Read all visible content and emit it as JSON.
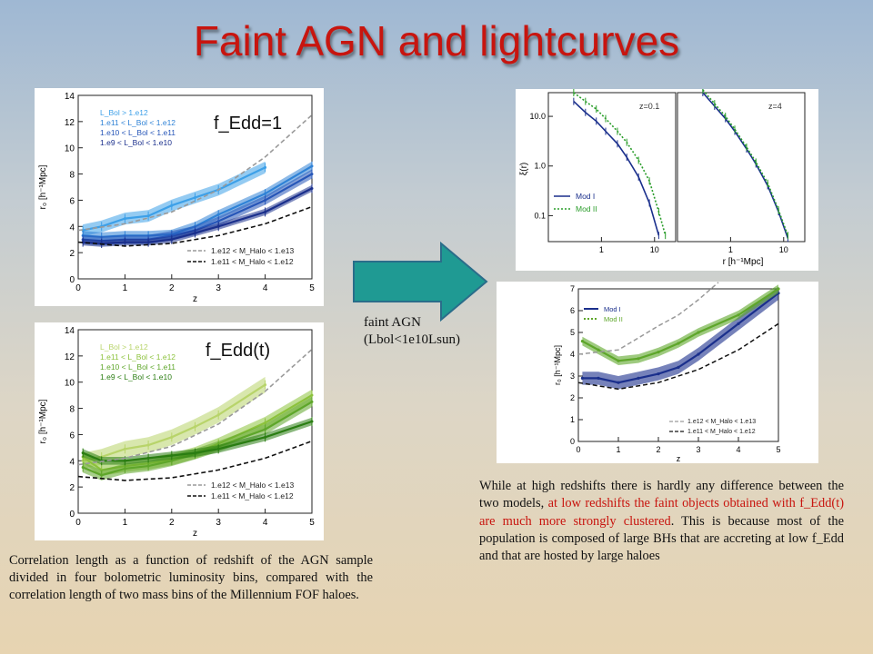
{
  "slide": {
    "title": "Faint AGN and lightcurves",
    "arrow_caption_line1": "faint AGN",
    "arrow_caption_line2": "(Lbol<1e10Lsun)",
    "caption_left": "Correlation length as a function of redshift of the AGN sample divided in four bolometric luminosity bins, compared with the correlation length of two mass bins of the Millennium FOF haloes.",
    "caption_right_part1": "While at high redshifts there is hardly any difference between the two models, ",
    "caption_right_red": "at low redshifts the faint objects obtained with f_Edd(t) are much more strongly clustered",
    "caption_right_part2": ". This is because most of the population is composed of large BHs that are accreting at low f_Edd and that are hosted by large haloes"
  },
  "colors": {
    "title": "#c8150f",
    "arrow": "#1f9a93",
    "blue_dark": "#1a2f8c",
    "green_dark": "#2a7d12"
  },
  "chart_data": [
    {
      "type": "line",
      "panel_label": "f_Edd=1",
      "xlabel": "z",
      "ylabel": "r₀ [h⁻¹Mpc]",
      "xlim": [
        0,
        5
      ],
      "ylim": [
        0,
        14
      ],
      "x_ticks": [
        "0",
        "1",
        "2",
        "3",
        "4",
        "5"
      ],
      "y_ticks": [
        "0",
        "2",
        "4",
        "6",
        "8",
        "10",
        "12",
        "14"
      ],
      "legend_lum": [
        {
          "name": "L_Bol > 1.e12",
          "color": "#3da0e8"
        },
        {
          "name": "1.e11 < L_Bol < 1.e12",
          "color": "#2f82d6"
        },
        {
          "name": "1.e10 < L_Bol < 1.e11",
          "color": "#2656b8"
        },
        {
          "name": "1.e9  < L_Bol < 1.e10",
          "color": "#1a2f8c"
        }
      ],
      "legend_halo": [
        {
          "name": "1.e12 < M_Halo < 1.e13",
          "style": "dashed",
          "color": "#9a9a9a"
        },
        {
          "name": "1.e11 < M_Halo < 1.e12",
          "style": "dashed",
          "color": "#111111"
        }
      ],
      "series": [
        {
          "name": "L_Bol > 1.e12",
          "color": "#3da0e8",
          "band": 0.45,
          "x": [
            0.1,
            0.5,
            1.0,
            1.5,
            2.0,
            2.5,
            3.0,
            4.0
          ],
          "y": [
            3.7,
            4.0,
            4.6,
            4.8,
            5.6,
            6.2,
            6.8,
            8.5
          ]
        },
        {
          "name": "1.e11 < L_Bol < 1.e12",
          "color": "#2f82d6",
          "band": 0.35,
          "x": [
            0.1,
            0.5,
            1.0,
            1.5,
            2.0,
            2.5,
            3.0,
            4.0,
            5.0
          ],
          "y": [
            3.3,
            3.2,
            3.3,
            3.3,
            3.4,
            4.0,
            4.9,
            6.5,
            8.6
          ]
        },
        {
          "name": "1.e10 < L_Bol < 1.e11",
          "color": "#2656b8",
          "band": 0.35,
          "x": [
            0.1,
            0.5,
            1.0,
            1.5,
            2.0,
            2.5,
            3.0,
            4.0,
            5.0
          ],
          "y": [
            3.0,
            2.9,
            3.0,
            3.0,
            3.3,
            3.7,
            4.4,
            6.0,
            8.0
          ]
        },
        {
          "name": "1.e9  < L_Bol < 1.e10",
          "color": "#1a2f8c",
          "band": 0.25,
          "x": [
            0.1,
            0.5,
            1.0,
            1.5,
            2.0,
            2.5,
            3.0,
            4.0,
            5.0
          ],
          "y": [
            2.8,
            2.7,
            2.8,
            2.8,
            3.0,
            3.5,
            4.0,
            5.1,
            6.9
          ]
        },
        {
          "name": "1.e12 < M_Halo < 1.e13",
          "color": "#9a9a9a",
          "dashed": true,
          "x": [
            0,
            1,
            2,
            3,
            4,
            5
          ],
          "y": [
            3.7,
            4.2,
            5.1,
            6.8,
            9.3,
            12.5
          ]
        },
        {
          "name": "1.e11 < M_Halo < 1.e12",
          "color": "#111111",
          "dashed": true,
          "x": [
            0,
            1,
            2,
            3,
            4,
            5
          ],
          "y": [
            2.8,
            2.5,
            2.7,
            3.3,
            4.2,
            5.5
          ]
        }
      ]
    },
    {
      "type": "line",
      "panel_label": "f_Edd(t)",
      "xlabel": "z",
      "ylabel": "r₀ [h⁻¹Mpc]",
      "xlim": [
        0,
        5
      ],
      "ylim": [
        0,
        14
      ],
      "x_ticks": [
        "0",
        "1",
        "2",
        "3",
        "4",
        "5"
      ],
      "y_ticks": [
        "0",
        "2",
        "4",
        "6",
        "8",
        "10",
        "12",
        "14"
      ],
      "legend_lum": [
        {
          "name": "L_Bol > 1.e12",
          "color": "#b8d46a"
        },
        {
          "name": "1.e11 < L_Bol < 1.e12",
          "color": "#8cc23c"
        },
        {
          "name": "1.e10 < L_Bol < 1.e11",
          "color": "#5ea62a"
        },
        {
          "name": "1.e9  < L_Bol < 1.e10",
          "color": "#2a7d12"
        }
      ],
      "legend_halo": [
        {
          "name": "1.e12 < M_Halo < 1.e13",
          "style": "dashed",
          "color": "#9a9a9a"
        },
        {
          "name": "1.e11 < M_Halo < 1.e12",
          "style": "dashed",
          "color": "#111111"
        }
      ],
      "series": [
        {
          "name": "L_Bol > 1.e12",
          "color": "#b8d46a",
          "band": 0.6,
          "x": [
            0.1,
            0.5,
            1.0,
            1.5,
            2.0,
            2.5,
            3.0,
            4.0
          ],
          "y": [
            4.0,
            4.3,
            4.9,
            5.2,
            5.8,
            6.6,
            7.5,
            9.8
          ]
        },
        {
          "name": "1.e11 < L_Bol < 1.e12",
          "color": "#8cc23c",
          "band": 0.45,
          "x": [
            0.1,
            0.5,
            1.0,
            1.5,
            2.0,
            2.5,
            3.0,
            4.0,
            5.0
          ],
          "y": [
            4.3,
            3.3,
            3.6,
            3.8,
            4.1,
            4.6,
            5.3,
            6.9,
            9.0
          ]
        },
        {
          "name": "1.e10 < L_Bol < 1.e11",
          "color": "#5ea62a",
          "band": 0.4,
          "x": [
            0.1,
            0.5,
            1.0,
            1.5,
            2.0,
            2.5,
            3.0,
            4.0,
            5.0
          ],
          "y": [
            3.5,
            2.9,
            3.4,
            3.6,
            4.0,
            4.5,
            5.1,
            6.4,
            8.5
          ]
        },
        {
          "name": "1.e9  < L_Bol < 1.e10",
          "color": "#2a7d12",
          "band": 0.3,
          "x": [
            0.1,
            0.5,
            1.0,
            1.5,
            2.0,
            2.5,
            3.0,
            4.0,
            5.0
          ],
          "y": [
            4.6,
            4.0,
            4.0,
            4.2,
            4.4,
            4.6,
            4.9,
            5.8,
            7.0
          ]
        },
        {
          "name": "1.e12 < M_Halo < 1.e13",
          "color": "#9a9a9a",
          "dashed": true,
          "x": [
            0,
            1,
            2,
            3,
            4,
            5
          ],
          "y": [
            3.7,
            4.2,
            5.1,
            6.8,
            9.3,
            12.5
          ]
        },
        {
          "name": "1.e11 < M_Halo < 1.e12",
          "color": "#111111",
          "dashed": true,
          "x": [
            0,
            1,
            2,
            3,
            4,
            5
          ],
          "y": [
            2.8,
            2.5,
            2.7,
            3.3,
            4.2,
            5.5
          ]
        }
      ]
    },
    {
      "type": "line",
      "log_axes": true,
      "xlabel": "r [h⁻¹Mpc]",
      "ylabel": "ξ(r)",
      "xlim": [
        0.1,
        25
      ],
      "ylim": [
        0.03,
        30
      ],
      "y_ticks": [
        "10.0",
        "1.0",
        "0.1"
      ],
      "x_ticks": [
        "1",
        "10"
      ],
      "x_ticks_right": [
        "1",
        "10"
      ],
      "panels": [
        {
          "label": "z=0.1",
          "series": [
            {
              "name": "Mod I",
              "color": "#1a2f8c",
              "x": [
                0.3,
                0.5,
                0.8,
                1.2,
                2,
                3,
                5,
                8,
                12
              ],
              "y": [
                20,
                12,
                8,
                5,
                2.8,
                1.5,
                0.6,
                0.18,
                0.04
              ]
            },
            {
              "name": "Mod II",
              "color": "#2a9d2a",
              "dotted": true,
              "x": [
                0.3,
                0.5,
                0.8,
                1.2,
                2,
                3,
                5,
                8,
                12,
                16
              ],
              "y": [
                30,
                20,
                14,
                9,
                5,
                3,
                1.3,
                0.5,
                0.12,
                0.04
              ]
            }
          ]
        },
        {
          "label": "z=4",
          "series": [
            {
              "name": "Mod I",
              "color": "#1a2f8c",
              "x": [
                0.3,
                0.5,
                0.8,
                1.2,
                2,
                3,
                5,
                8,
                12
              ],
              "y": [
                30,
                16,
                9,
                5,
                2.2,
                1.1,
                0.4,
                0.12,
                0.035
              ]
            },
            {
              "name": "Mod II",
              "color": "#2a9d2a",
              "dotted": true,
              "x": [
                0.3,
                0.5,
                0.8,
                1.2,
                2,
                3,
                5,
                8,
                12
              ],
              "y": [
                34,
                18,
                10,
                5.5,
                2.4,
                1.2,
                0.45,
                0.13,
                0.04
              ]
            }
          ]
        }
      ],
      "legend": [
        {
          "name": "Mod I",
          "color": "#1a2f8c"
        },
        {
          "name": "Mod II",
          "color": "#2a9d2a"
        }
      ]
    },
    {
      "type": "line",
      "xlabel": "z",
      "ylabel": "r₀ [h⁻¹Mpc]",
      "xlim": [
        0,
        5
      ],
      "ylim": [
        0,
        7
      ],
      "x_ticks": [
        "0",
        "1",
        "2",
        "3",
        "4",
        "5"
      ],
      "y_ticks": [
        "0",
        "1",
        "2",
        "3",
        "4",
        "5",
        "6",
        "7"
      ],
      "legend": [
        {
          "name": "Mod I",
          "color": "#1a2f8c"
        },
        {
          "name": "Mod II",
          "color": "#5ea62a"
        }
      ],
      "legend_halo": [
        {
          "name": "1.e12 < M_Halo < 1.e13",
          "color": "#9a9a9a"
        },
        {
          "name": "1.e11 < M_Halo < 1.e12",
          "color": "#111111"
        }
      ],
      "series": [
        {
          "name": "Mod I",
          "color": "#1a2f8c",
          "band": 0.3,
          "x": [
            0.1,
            0.5,
            1,
            1.5,
            2,
            2.5,
            3,
            4,
            5
          ],
          "y": [
            2.9,
            2.9,
            2.7,
            2.9,
            3.1,
            3.4,
            4.0,
            5.4,
            6.8
          ]
        },
        {
          "name": "Mod II",
          "color": "#5ea62a",
          "band": 0.2,
          "x": [
            0.1,
            0.5,
            1,
            1.5,
            2,
            2.5,
            3,
            4,
            5
          ],
          "y": [
            4.6,
            4.2,
            3.7,
            3.8,
            4.1,
            4.5,
            5.0,
            5.8,
            7.0
          ]
        },
        {
          "name": "1.e12 < M_Halo < 1.e13",
          "color": "#9a9a9a",
          "dashed": true,
          "x": [
            0,
            1,
            2,
            2.5,
            3,
            3.5
          ],
          "y": [
            4.0,
            4.2,
            5.3,
            5.8,
            6.5,
            7.3
          ]
        },
        {
          "name": "1.e11 < M_Halo < 1.e12",
          "color": "#111111",
          "dashed": true,
          "x": [
            0,
            1,
            2,
            3,
            4,
            5
          ],
          "y": [
            2.7,
            2.4,
            2.7,
            3.3,
            4.2,
            5.4
          ]
        }
      ]
    }
  ]
}
